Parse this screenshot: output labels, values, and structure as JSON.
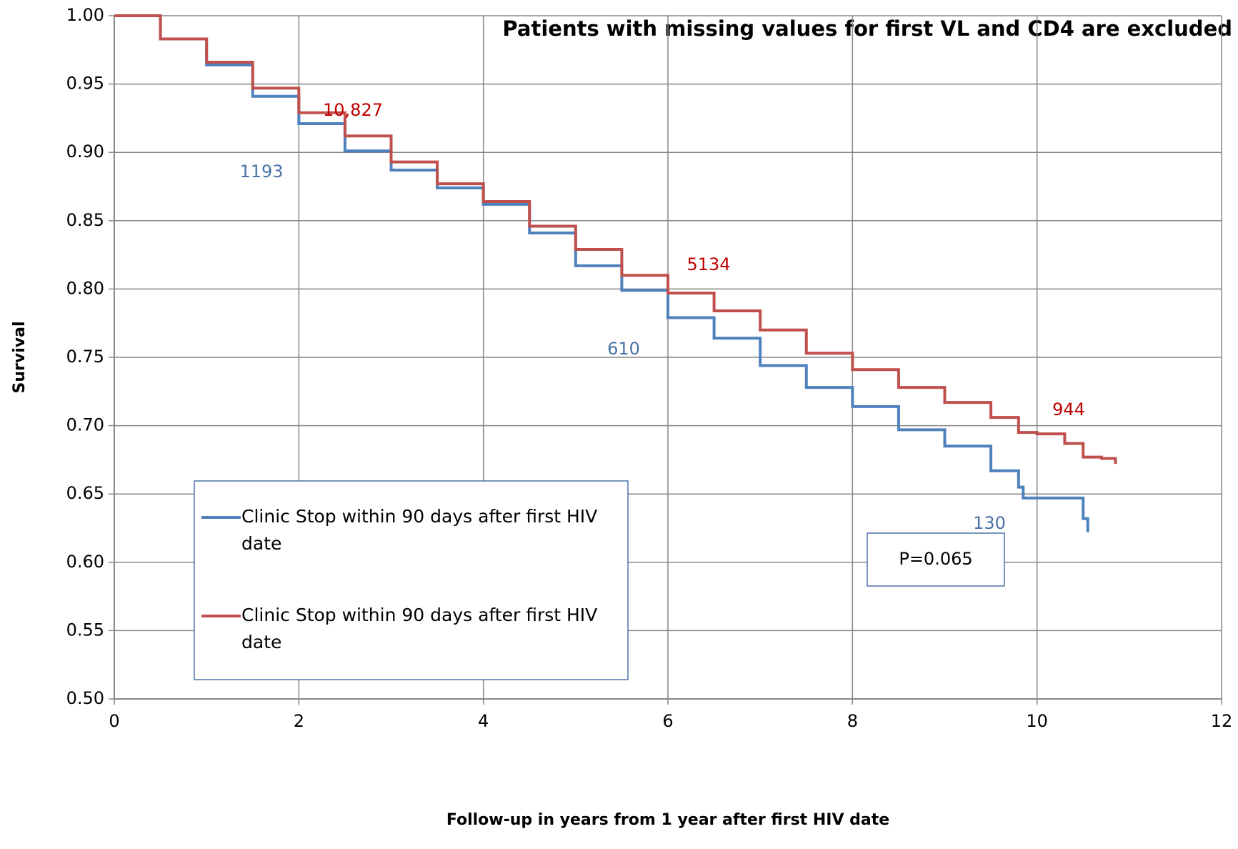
{
  "chart_data": {
    "type": "line",
    "title": "Patients with missing values for first VL and CD4 are excluded",
    "xlabel": "Follow-up in years from 1 year after first HIV date",
    "ylabel": "Survival",
    "xlim": [
      0,
      12
    ],
    "xticks": [
      0,
      2,
      4,
      6,
      8,
      10,
      12
    ],
    "ylim": [
      0.5,
      1.0
    ],
    "yticks": [
      {
        "value": 0.5,
        "label": "0.50"
      },
      {
        "value": 0.55,
        "label": "0.55"
      },
      {
        "value": 0.6,
        "label": "0.60"
      },
      {
        "value": 0.65,
        "label": "0.65"
      },
      {
        "value": 0.7,
        "label": "0.70"
      },
      {
        "value": 0.75,
        "label": "0.75"
      },
      {
        "value": 0.8,
        "label": "0.80"
      },
      {
        "value": 0.85,
        "label": "0.85"
      },
      {
        "value": 0.9,
        "label": "0.90"
      },
      {
        "value": 0.95,
        "label": "0.95"
      },
      {
        "value": 1.0,
        "label": "1.00"
      }
    ],
    "grid": true,
    "series": [
      {
        "name": "Clinic Stop within 90 days after first HIV date",
        "color": "#4f81bd",
        "x": [
          0,
          0.5,
          1,
          1.5,
          2,
          2.5,
          3,
          3.5,
          4,
          4.5,
          5,
          5.5,
          6,
          6.5,
          7,
          7.5,
          8,
          8.5,
          9,
          9.5,
          9.8,
          9.85,
          10.45,
          10.5,
          10.55
        ],
        "values": [
          1.0,
          0.983,
          0.964,
          0.941,
          0.921,
          0.901,
          0.887,
          0.874,
          0.862,
          0.841,
          0.817,
          0.799,
          0.779,
          0.764,
          0.744,
          0.728,
          0.714,
          0.697,
          0.685,
          0.667,
          0.655,
          0.647,
          0.647,
          0.632,
          0.622
        ]
      },
      {
        "name": "Clinic Stop within 90 days after first HIV date",
        "color": "#c0504d",
        "x": [
          0,
          0.5,
          1,
          1.5,
          2,
          2.5,
          3,
          3.5,
          4,
          4.5,
          5,
          5.5,
          6,
          6.5,
          7,
          7.5,
          8,
          8.5,
          9,
          9.5,
          9.8,
          10,
          10.3,
          10.5,
          10.7,
          10.85
        ],
        "values": [
          1.0,
          0.983,
          0.966,
          0.947,
          0.929,
          0.912,
          0.893,
          0.877,
          0.864,
          0.846,
          0.829,
          0.81,
          0.797,
          0.784,
          0.77,
          0.753,
          0.741,
          0.728,
          0.717,
          0.706,
          0.695,
          0.694,
          0.687,
          0.677,
          0.676,
          0.672
        ]
      }
    ],
    "annotations": [
      {
        "text": "10,827",
        "color": "#c00000"
      },
      {
        "text": "1193",
        "color": "#4a72a8"
      },
      {
        "text": "5134",
        "color": "#c00000"
      },
      {
        "text": "610",
        "color": "#4a72a8"
      },
      {
        "text": "944",
        "color": "#c00000"
      },
      {
        "text": "130",
        "color": "#4a72a8"
      }
    ],
    "p_value": "P=0.065"
  }
}
